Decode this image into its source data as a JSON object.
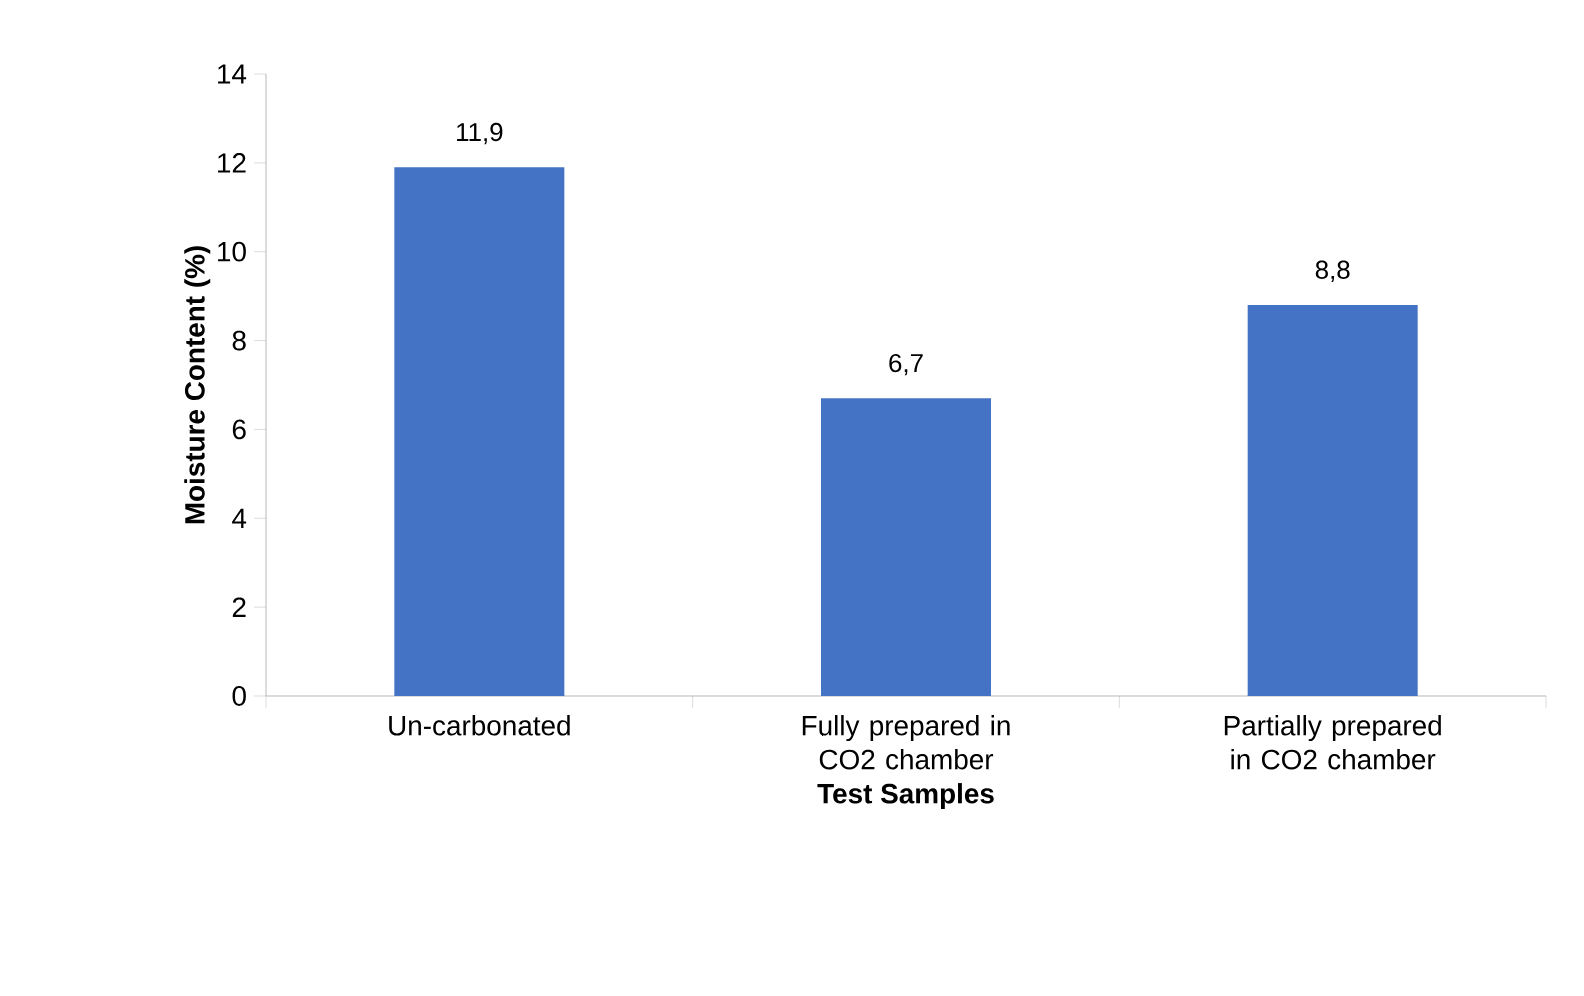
{
  "chart_data": {
    "type": "bar",
    "xlabel": "Test Samples",
    "ylabel": "Moisture Content (%)",
    "categories": [
      "Un-carbonated",
      "Fully prepared in CO2 chamber",
      "Partially prepared in CO2 chamber"
    ],
    "values": [
      11.9,
      6.7,
      8.8
    ],
    "value_labels": [
      "11,9",
      "6,7",
      "8,8"
    ],
    "color": "#4472c4",
    "ylim": [
      0,
      14
    ],
    "yticks": [
      0,
      2,
      4,
      6,
      8,
      10,
      12,
      14
    ],
    "grid": false
  }
}
